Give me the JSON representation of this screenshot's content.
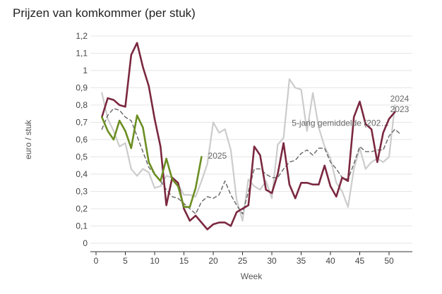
{
  "chart_data": {
    "type": "line",
    "title": "Prijzen van komkommer (per stuk)",
    "xlabel": "Week",
    "ylabel": "euro / stuk",
    "xlim": [
      0,
      53
    ],
    "ylim": [
      0,
      1.2
    ],
    "xticks": [
      0,
      5,
      10,
      15,
      20,
      25,
      30,
      35,
      40,
      45,
      50
    ],
    "yticks": [
      0,
      0.1,
      0.2,
      0.3,
      0.4,
      0.5,
      0.6,
      0.7,
      0.8,
      0.9,
      1,
      1.1,
      1.2
    ],
    "ytick_labels": [
      "0",
      "0,1",
      "0,2",
      "0,3",
      "0,4",
      "0,5",
      "0,6",
      "0,7",
      "0,8",
      "0,9",
      "1",
      "1,1",
      "1,2"
    ],
    "xtick_labels": [
      "0",
      "5",
      "10",
      "15",
      "20",
      "25",
      "30",
      "35",
      "40",
      "45",
      "50"
    ],
    "grid": "horizontal",
    "series": [
      {
        "name": "2024",
        "color": "#cccccc",
        "dash": false,
        "x": [
          1,
          2,
          3,
          4,
          5,
          6,
          7,
          8,
          9,
          10,
          11,
          12,
          13,
          14,
          15,
          16,
          17,
          18,
          19,
          20,
          21,
          22,
          23,
          24,
          25,
          26,
          27,
          28,
          29,
          30,
          31,
          32,
          33,
          34,
          35,
          36,
          37,
          38,
          39,
          40,
          41,
          42,
          43,
          44,
          45,
          46,
          47,
          48,
          49,
          50,
          51
        ],
        "y": [
          0.87,
          0.72,
          0.65,
          0.56,
          0.58,
          0.43,
          0.39,
          0.43,
          0.41,
          0.32,
          0.33,
          0.39,
          0.38,
          0.34,
          0.28,
          0.28,
          0.27,
          0.36,
          0.46,
          0.7,
          0.64,
          0.66,
          0.54,
          0.25,
          0.13,
          0.37,
          0.33,
          0.31,
          0.36,
          0.26,
          0.57,
          0.61,
          0.95,
          0.9,
          0.89,
          0.65,
          0.87,
          0.67,
          0.56,
          0.49,
          0.35,
          0.3,
          0.21,
          0.43,
          0.55,
          0.43,
          0.47,
          0.49,
          0.47,
          0.5,
          0.8
        ]
      },
      {
        "name": "5-jarig gemiddelde (202…",
        "color": "#666666",
        "dash": true,
        "x": [
          1,
          2,
          3,
          4,
          5,
          6,
          7,
          8,
          9,
          10,
          11,
          12,
          13,
          14,
          15,
          16,
          17,
          18,
          19,
          20,
          21,
          22,
          23,
          24,
          25,
          26,
          27,
          28,
          29,
          30,
          31,
          32,
          33,
          34,
          35,
          36,
          37,
          38,
          39,
          40,
          41,
          42,
          43,
          44,
          45,
          46,
          47,
          48,
          49,
          50,
          51,
          52
        ],
        "y": [
          0.66,
          0.74,
          0.78,
          0.77,
          0.73,
          0.71,
          0.62,
          0.53,
          0.44,
          0.4,
          0.36,
          0.31,
          0.27,
          0.26,
          0.23,
          0.2,
          0.17,
          0.24,
          0.27,
          0.26,
          0.28,
          0.36,
          0.28,
          0.22,
          0.17,
          0.3,
          0.43,
          0.43,
          0.4,
          0.38,
          0.38,
          0.43,
          0.47,
          0.48,
          0.52,
          0.54,
          0.51,
          0.55,
          0.55,
          0.47,
          0.43,
          0.38,
          0.37,
          0.46,
          0.56,
          0.53,
          0.53,
          0.54,
          0.54,
          0.62,
          0.66,
          0.63
        ]
      },
      {
        "name": "2023",
        "color": "#7b2840",
        "dash": false,
        "x": [
          1,
          2,
          3,
          4,
          5,
          6,
          7,
          8,
          9,
          10,
          11,
          12,
          13,
          14,
          15,
          16,
          17,
          18,
          19,
          20,
          21,
          22,
          23,
          24,
          25,
          26,
          27,
          28,
          29,
          30,
          31,
          32,
          33,
          34,
          35,
          36,
          37,
          38,
          39,
          40,
          41,
          42,
          43,
          44,
          45,
          46,
          47,
          48,
          49,
          50,
          51
        ],
        "y": [
          0.73,
          0.84,
          0.83,
          0.8,
          0.79,
          1.09,
          1.16,
          1.02,
          0.91,
          0.72,
          0.56,
          0.22,
          0.38,
          0.35,
          0.2,
          0.13,
          0.16,
          0.12,
          0.08,
          0.11,
          0.12,
          0.12,
          0.1,
          0.18,
          0.2,
          0.22,
          0.56,
          0.51,
          0.31,
          0.29,
          0.4,
          0.58,
          0.34,
          0.26,
          0.35,
          0.35,
          0.34,
          0.34,
          0.45,
          0.33,
          0.27,
          0.38,
          0.36,
          0.73,
          0.82,
          0.69,
          0.66,
          0.47,
          0.64,
          0.72,
          0.76
        ]
      },
      {
        "name": "2025",
        "color": "#6b8e23",
        "dash": false,
        "x": [
          1,
          2,
          3,
          4,
          5,
          6,
          7,
          8,
          9,
          10,
          11,
          12,
          13,
          14,
          15,
          16,
          17,
          18
        ],
        "y": [
          0.73,
          0.65,
          0.6,
          0.71,
          0.65,
          0.55,
          0.74,
          0.67,
          0.47,
          0.4,
          0.36,
          0.49,
          0.37,
          0.33,
          0.21,
          0.21,
          0.32,
          0.5
        ]
      }
    ],
    "annotations": [
      {
        "text": "2024",
        "x": 50.2,
        "y": 0.82,
        "color": "#888888"
      },
      {
        "text": "2023",
        "x": 50.2,
        "y": 0.76,
        "color": "#888888"
      },
      {
        "text": "5-jarig gemiddelde (202…",
        "x": 33.4,
        "y": 0.68,
        "color": "#777777"
      },
      {
        "text": "2025",
        "x": 19.1,
        "y": 0.49,
        "color": "#888888"
      }
    ]
  }
}
